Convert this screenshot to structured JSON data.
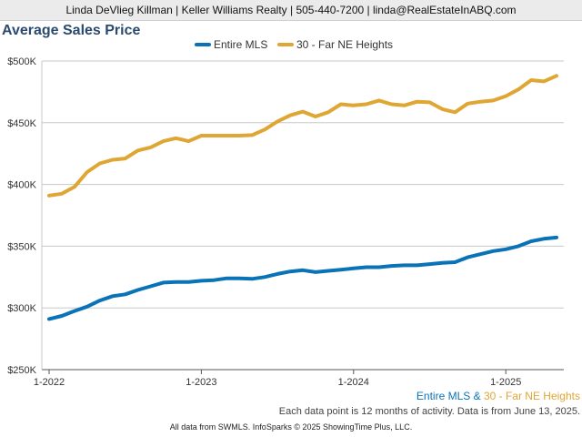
{
  "header": {
    "text": "Linda DeVlieg Killman | Keller Williams Realty | 505-440-7200 | linda@RealEstateInABQ.com"
  },
  "footer": {
    "series_a": "Entire MLS",
    "joiner": " & ",
    "series_b": "30 - Far NE Heights",
    "note": "Each data point is 12 months of activity. Data is from June 13, 2025.",
    "credit": "All data from SWMLS. InfoSparks © 2025 ShowingTime Plus, LLC."
  },
  "colors": {
    "entire_mls": "#0a73b8",
    "far_ne": "#dfa633",
    "title": "#2b4a6f"
  },
  "chart_data": {
    "type": "line",
    "title": "Average Sales Price",
    "xlabel": "",
    "ylabel": "",
    "ylim": [
      250000,
      500000
    ],
    "yticks": [
      250000,
      300000,
      350000,
      400000,
      450000,
      500000
    ],
    "ytick_labels": [
      "$250K",
      "$300K",
      "$350K",
      "$400K",
      "$450K",
      "$500K"
    ],
    "xticks": [
      "2022-01",
      "2023-01",
      "2024-01",
      "2025-01"
    ],
    "xtick_labels": [
      "1-2022",
      "1-2023",
      "1-2024",
      "1-2025"
    ],
    "x": [
      "2022-01",
      "2022-02",
      "2022-03",
      "2022-04",
      "2022-05",
      "2022-06",
      "2022-07",
      "2022-08",
      "2022-09",
      "2022-10",
      "2022-11",
      "2022-12",
      "2023-01",
      "2023-02",
      "2023-03",
      "2023-04",
      "2023-05",
      "2023-06",
      "2023-07",
      "2023-08",
      "2023-09",
      "2023-10",
      "2023-11",
      "2023-12",
      "2024-01",
      "2024-02",
      "2024-03",
      "2024-04",
      "2024-05",
      "2024-06",
      "2024-07",
      "2024-08",
      "2024-09",
      "2024-10",
      "2024-11",
      "2024-12",
      "2025-01",
      "2025-02",
      "2025-03",
      "2025-04",
      "2025-05"
    ],
    "grid": true,
    "legend_position": "top-center",
    "series": [
      {
        "name": "Entire MLS",
        "values": [
          291000,
          293500,
          297500,
          301000,
          306000,
          309500,
          311000,
          314500,
          317500,
          320500,
          321000,
          321000,
          322000,
          322500,
          324000,
          324000,
          323500,
          325000,
          327500,
          329500,
          330500,
          329000,
          330000,
          331000,
          332000,
          333000,
          333000,
          334000,
          334500,
          334500,
          335500,
          336500,
          337000,
          341000,
          343500,
          346000,
          347500,
          350000,
          354000,
          356000,
          357000
        ]
      },
      {
        "name": "30 - Far NE Heights",
        "values": [
          391000,
          392500,
          398000,
          410000,
          417000,
          420000,
          421000,
          427500,
          430000,
          435000,
          437500,
          435000,
          439500,
          439500,
          439500,
          439500,
          440000,
          444500,
          451000,
          456000,
          459000,
          455000,
          458500,
          465000,
          464000,
          465000,
          468000,
          465000,
          464000,
          467000,
          466500,
          461000,
          458500,
          465500,
          467000,
          468000,
          471500,
          477000,
          484500,
          483500,
          488000
        ]
      }
    ]
  }
}
